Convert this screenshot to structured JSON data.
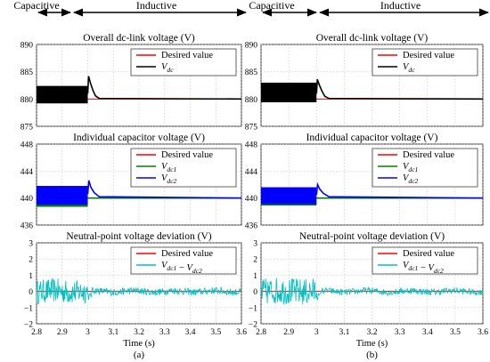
{
  "region_labels": {
    "capacitive": "Capacitive",
    "inductive": "Inductive"
  },
  "panel_labels": [
    "(a)",
    "(b)"
  ],
  "chart_data": [
    {
      "type": "line",
      "panel": "(a)",
      "xlabel": "Time (s)",
      "xlim": [
        2.8,
        3.6
      ],
      "xticks": [
        "2.8",
        "2.9",
        "3",
        "3.1",
        "3.2",
        "3.3",
        "3.4",
        "3.5",
        "3.6"
      ],
      "subplots": [
        {
          "title": "Overall dc-link voltage (V)",
          "ylim": [
            875,
            890
          ],
          "yticks": [
            "875",
            "880",
            "885",
            "890"
          ],
          "legend": [
            "Desired value",
            "V_dc"
          ],
          "series": [
            {
              "name": "Desired value",
              "color": "#ff0000",
              "x": [
                2.8,
                3.6
              ],
              "y": [
                880,
                880
              ]
            },
            {
              "name": "V_dc",
              "color": "#000000",
              "band_until_x": 3.0,
              "band_y": [
                879.2,
                882.4
              ],
              "x": [
                3.0,
                3.003,
                3.01,
                3.02,
                3.03,
                3.045,
                3.6
              ],
              "y": [
                881.0,
                884.2,
                883.0,
                881.6,
                880.6,
                880.1,
                880.0
              ]
            }
          ]
        },
        {
          "title": "Individual capacitor voltage (V)",
          "ylim": [
            436,
            448
          ],
          "yticks": [
            "436",
            "440",
            "444",
            "448"
          ],
          "legend": [
            "Desired value",
            "V_dc1",
            "V_dc2"
          ],
          "series": [
            {
              "name": "Desired value",
              "color": "#ff0000",
              "x": [
                2.8,
                3.6
              ],
              "y": [
                440,
                440
              ]
            },
            {
              "name": "V_dc1",
              "color": "#008000",
              "band_until_x": 3.0,
              "band_y": [
                438.7,
                441.4
              ],
              "x": [
                3.0,
                3.6
              ],
              "y": [
                440.0,
                440.0
              ]
            },
            {
              "name": "V_dc2",
              "color": "#0000ff",
              "band_until_x": 3.0,
              "band_y": [
                439.0,
                441.8
              ],
              "x": [
                3.0,
                3.004,
                3.012,
                3.025,
                3.045,
                3.6
              ],
              "y": [
                440.6,
                442.6,
                441.6,
                440.8,
                440.2,
                440.0
              ]
            }
          ]
        },
        {
          "title": "Neutral-point voltage deviation (V)",
          "ylim": [
            -2,
            3
          ],
          "yticks": [
            "−2",
            "−1",
            "0",
            "1",
            "2",
            "3"
          ],
          "legend": [
            "Desired value",
            "V_dc1 − V_dc2"
          ],
          "series": [
            {
              "name": "Desired value",
              "color": "#ff0000",
              "x": [
                2.8,
                3.6
              ],
              "y": [
                0,
                0
              ]
            },
            {
              "name": "V_dc1 − V_dc2",
              "color": "#00c0c0",
              "noise_amplitude_before": 0.75,
              "noise_amplitude_after": 0.22
            }
          ]
        }
      ]
    },
    {
      "type": "line",
      "panel": "(b)",
      "xlabel": "Time (s)",
      "xlim": [
        2.8,
        3.6
      ],
      "xticks": [
        "2.8",
        "2.9",
        "3",
        "3.1",
        "3.2",
        "3.3",
        "3.4",
        "3.5",
        "3.6"
      ],
      "subplots": [
        {
          "title": "Overall dc-link voltage (V)",
          "ylim": [
            875,
            890
          ],
          "yticks": [
            "875",
            "880",
            "885",
            "890"
          ],
          "legend": [
            "Desired value",
            "V_dc"
          ],
          "series": [
            {
              "name": "Desired value",
              "color": "#ff0000",
              "x": [
                2.8,
                3.6
              ],
              "y": [
                880,
                880
              ]
            },
            {
              "name": "V_dc",
              "color": "#000000",
              "band_until_x": 3.0,
              "band_y": [
                879.4,
                883.0
              ],
              "x": [
                3.0,
                3.003,
                3.01,
                3.02,
                3.03,
                3.045,
                3.6
              ],
              "y": [
                881.0,
                883.6,
                882.6,
                881.4,
                880.5,
                880.1,
                880.0
              ]
            }
          ]
        },
        {
          "title": "Individual capacitor voltage (V)",
          "ylim": [
            436,
            448
          ],
          "yticks": [
            "436",
            "440",
            "444",
            "448"
          ],
          "legend": [
            "Desired value",
            "V_dc1",
            "V_dc2"
          ],
          "series": [
            {
              "name": "Desired value",
              "color": "#ff0000",
              "x": [
                2.8,
                3.6
              ],
              "y": [
                440,
                440
              ]
            },
            {
              "name": "V_dc1",
              "color": "#008000",
              "band_until_x": 3.0,
              "band_y": [
                438.9,
                441.3
              ],
              "x": [
                3.0,
                3.6
              ],
              "y": [
                440.0,
                440.0
              ]
            },
            {
              "name": "V_dc2",
              "color": "#0000ff",
              "band_until_x": 3.0,
              "band_y": [
                439.1,
                441.6
              ],
              "x": [
                3.0,
                3.004,
                3.012,
                3.025,
                3.045,
                3.6
              ],
              "y": [
                440.5,
                442.0,
                441.3,
                440.7,
                440.2,
                440.0
              ]
            }
          ]
        },
        {
          "title": "Neutral-point voltage deviation (V)",
          "ylim": [
            -2,
            3
          ],
          "yticks": [
            "−2",
            "−1",
            "0",
            "1",
            "2",
            "3"
          ],
          "legend": [
            "Desired value",
            "V_dc1 − V_dc2"
          ],
          "series": [
            {
              "name": "Desired value",
              "color": "#ff0000",
              "x": [
                2.8,
                3.6
              ],
              "y": [
                0,
                0
              ]
            },
            {
              "name": "V_dc1 − V_dc2",
              "color": "#00c0c0",
              "noise_amplitude_before": 0.85,
              "noise_amplitude_after": 0.2
            }
          ]
        }
      ]
    }
  ]
}
